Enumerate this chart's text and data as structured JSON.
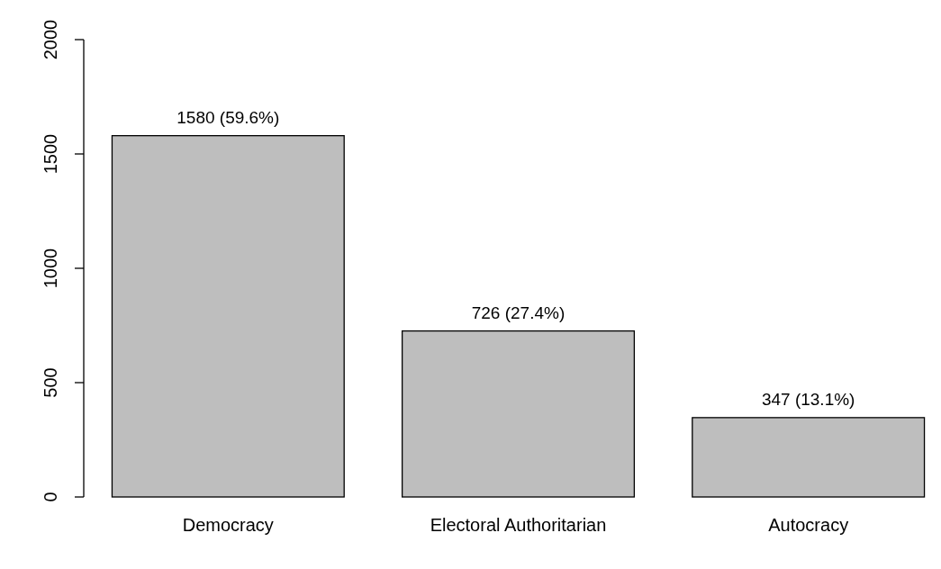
{
  "chart_data": {
    "type": "bar",
    "categories": [
      "Democracy",
      "Electoral Authoritarian",
      "Autocracy"
    ],
    "values": [
      1580,
      726,
      347
    ],
    "color": "#bebebe",
    "value_labels": [
      "1580 (59.6%)",
      "726 (27.4%)",
      "347 (13.1%)"
    ],
    "ylim": [
      0,
      2000
    ],
    "yticks": [
      0,
      500,
      1000,
      1500,
      2000
    ],
    "grid": false
  }
}
